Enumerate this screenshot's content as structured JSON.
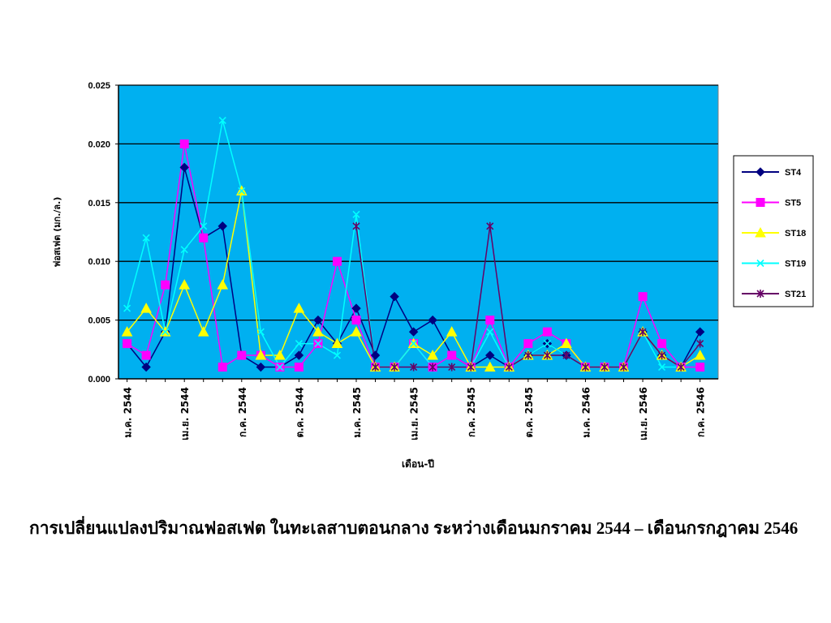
{
  "caption": "การเปลี่ยนแปลงปริมาณฟอสเฟต ในทะเลสาบตอนกลาง   ระหว่างเดือนมกราคม 2544 – เดือนกรกฎาคม 2546",
  "chart_data": {
    "type": "line",
    "title": "",
    "xlabel": "เดือน-ปี",
    "ylabel": "ฟอสเฟต (มก./ล.)",
    "ylim": [
      0,
      0.025
    ],
    "yticks": [
      "0.000",
      "0.005",
      "0.010",
      "0.015",
      "0.020",
      "0.025"
    ],
    "grid": true,
    "legend": "right",
    "background": "#00B0F0",
    "categories": [
      "ม.ค. 2544",
      "",
      "",
      "เม.ย. 2544",
      "",
      "",
      "ก.ค. 2544",
      "",
      "",
      "ต.ค. 2544",
      "",
      "",
      "ม.ค. 2545",
      "",
      "",
      "เม.ย. 2545",
      "",
      "",
      "ก.ค. 2545",
      "",
      "",
      "ต.ค. 2545",
      "",
      "",
      "ม.ค. 2546",
      "",
      "",
      "เม.ย. 2546",
      "",
      "",
      "ก.ค. 2546"
    ],
    "series": [
      {
        "name": "ST4",
        "color": "#000080",
        "marker": "diamond",
        "values": [
          0.003,
          0.001,
          0.004,
          0.018,
          0.012,
          0.013,
          0.002,
          0.001,
          0.001,
          0.002,
          0.005,
          0.003,
          0.006,
          0.002,
          0.007,
          0.004,
          0.005,
          0.002,
          0.001,
          0.002,
          0.001,
          0.002,
          0.003,
          0.002,
          0.001,
          0.001,
          0.001,
          0.004,
          0.002,
          0.001,
          0.004
        ]
      },
      {
        "name": "ST5",
        "color": "#FF00FF",
        "marker": "square",
        "values": [
          0.003,
          0.002,
          0.008,
          0.02,
          0.012,
          0.001,
          0.002,
          0.002,
          0.001,
          0.001,
          0.003,
          0.01,
          0.005,
          0.001,
          0.001,
          0.003,
          0.001,
          0.002,
          0.001,
          0.005,
          0.001,
          0.003,
          0.004,
          0.003,
          0.001,
          0.001,
          0.001,
          0.007,
          0.003,
          0.001,
          0.001
        ]
      },
      {
        "name": "ST18",
        "color": "#FFFF00",
        "marker": "triangle",
        "values": [
          0.004,
          0.006,
          0.004,
          0.008,
          0.004,
          0.008,
          0.016,
          0.002,
          0.002,
          0.006,
          0.004,
          0.003,
          0.004,
          0.001,
          0.001,
          0.003,
          0.002,
          0.004,
          0.001,
          0.001,
          0.001,
          0.002,
          0.002,
          0.003,
          0.001,
          0.001,
          0.001,
          0.004,
          0.002,
          0.001,
          0.002
        ]
      },
      {
        "name": "ST19",
        "color": "#00FFFF",
        "marker": "x",
        "values": [
          0.006,
          0.012,
          0.004,
          0.011,
          0.013,
          0.022,
          0.016,
          0.004,
          0.001,
          0.003,
          0.003,
          0.002,
          0.014,
          0.001,
          0.001,
          0.003,
          0.001,
          0.001,
          0.001,
          0.004,
          0.001,
          0.002,
          0.003,
          0.002,
          0.001,
          0.001,
          0.001,
          0.004,
          0.001,
          0.001,
          0.003
        ]
      },
      {
        "name": "ST21",
        "color": "#660066",
        "marker": "star",
        "values": [
          null,
          null,
          null,
          null,
          null,
          null,
          null,
          null,
          null,
          null,
          null,
          null,
          0.013,
          0.001,
          0.001,
          0.001,
          0.001,
          0.001,
          0.001,
          0.013,
          0.001,
          0.002,
          0.002,
          0.002,
          0.001,
          0.001,
          0.001,
          0.004,
          0.002,
          0.001,
          0.003
        ]
      }
    ]
  }
}
